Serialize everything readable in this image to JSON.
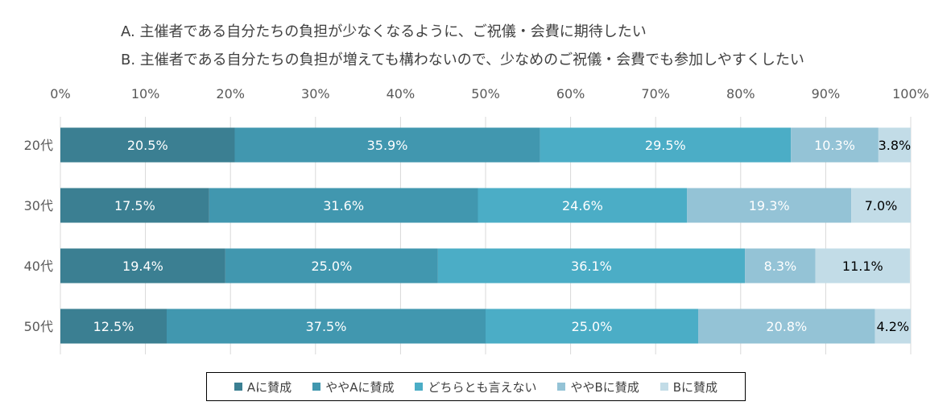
{
  "definitions": {
    "a": "A. 主催者である自分たちの負担が少なくなるように、ご祝儀・会費に期待したい",
    "b": "B. 主催者である自分たちの負担が増えても構わないので、少なめのご祝儀・会費でも参加しやすくしたい"
  },
  "chart_data": {
    "type": "bar",
    "orientation": "horizontal",
    "stacked": true,
    "normalized_100": true,
    "categories": [
      "20代",
      "30代",
      "40代",
      "50代"
    ],
    "series": [
      {
        "name": "Aに賛成",
        "color": "#3B7F92",
        "values": [
          20.5,
          17.5,
          19.4,
          12.5
        ]
      },
      {
        "name": "ややAに賛成",
        "color": "#4197AF",
        "values": [
          35.9,
          31.6,
          25.0,
          37.5
        ]
      },
      {
        "name": "どちらとも言えない",
        "color": "#4BADC6",
        "values": [
          29.5,
          24.6,
          36.1,
          25.0
        ]
      },
      {
        "name": "ややBに賛成",
        "color": "#94C3D6",
        "values": [
          10.3,
          19.3,
          8.3,
          20.8
        ]
      },
      {
        "name": "Bに賛成",
        "color": "#C2DCE7",
        "values": [
          3.8,
          7.0,
          11.1,
          4.2
        ]
      }
    ],
    "data_labels": [
      [
        "20.5%",
        "35.9%",
        "29.5%",
        "10.3%",
        "3.8%"
      ],
      [
        "17.5%",
        "31.6%",
        "24.6%",
        "19.3%",
        "7.0%"
      ],
      [
        "19.4%",
        "25.0%",
        "36.1%",
        "8.3%",
        "11.1%"
      ],
      [
        "12.5%",
        "37.5%",
        "25.0%",
        "20.8%",
        "4.2%"
      ]
    ],
    "x_ticks": [
      "0%",
      "10%",
      "20%",
      "30%",
      "40%",
      "50%",
      "60%",
      "70%",
      "80%",
      "90%",
      "100%"
    ],
    "xlim": [
      0,
      100
    ],
    "grid": true,
    "legend_position": "bottom"
  }
}
